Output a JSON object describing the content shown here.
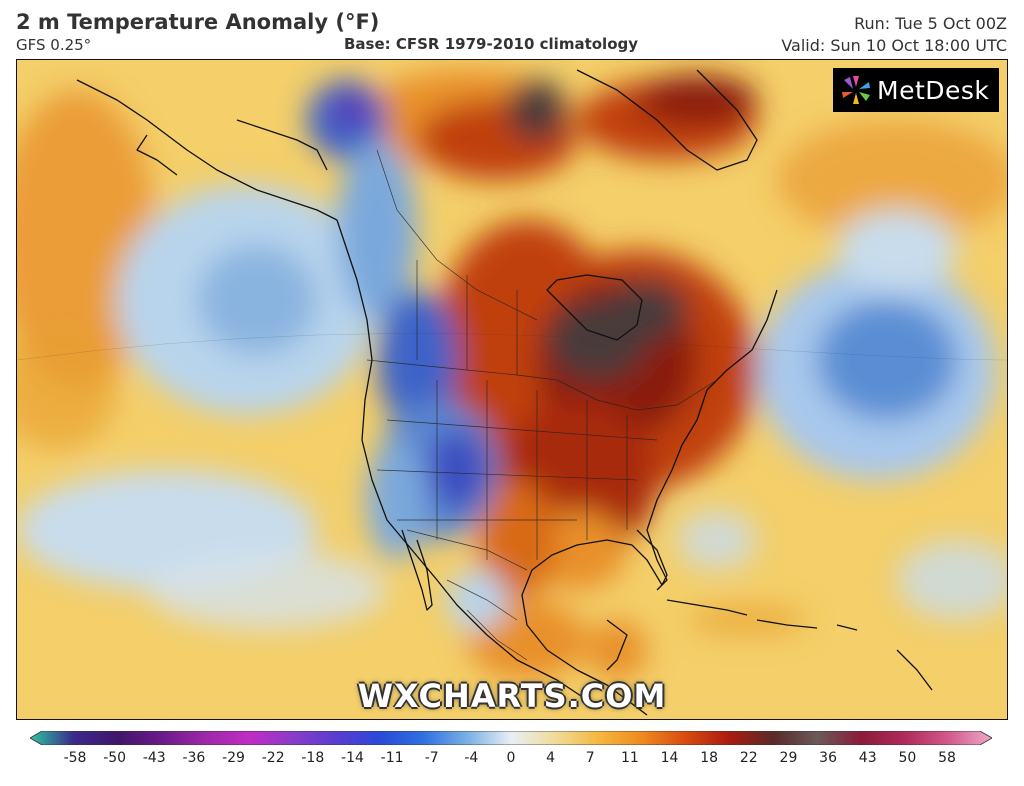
{
  "header": {
    "title": "2 m Temperature Anomaly (°F)",
    "model": "GFS 0.25°",
    "base": "Base: CFSR 1979-2010 climatology",
    "run": "Run: Tue 5 Oct 00Z",
    "valid": "Valid: Sun 10 Oct 18:00 UTC"
  },
  "logo": {
    "text": "MetDesk",
    "icon": "metdesk-logo-icon"
  },
  "watermark": "WXCHARTS.COM",
  "legend": {
    "ticks": [
      "-58",
      "-50",
      "-43",
      "-36",
      "-29",
      "-22",
      "-18",
      "-14",
      "-11",
      "-7",
      "-4",
      "0",
      "4",
      "7",
      "11",
      "14",
      "18",
      "22",
      "29",
      "36",
      "43",
      "50",
      "58"
    ],
    "colors": [
      "#2ec4a0",
      "#3a2a8a",
      "#40166a",
      "#6a1a88",
      "#9c28a8",
      "#c02cc4",
      "#8a3cc8",
      "#5a3cd0",
      "#2a4ad8",
      "#3070e0",
      "#7ab0e4",
      "#e8eef4",
      "#f0dc9a",
      "#f4b840",
      "#ee8a20",
      "#d84a10",
      "#a81c10",
      "#5a2a28",
      "#6a5a5a",
      "#8a1c3a",
      "#b02a5a",
      "#d05a8a",
      "#f0a8c8"
    ]
  },
  "map": {
    "colors": {
      "background": "#f4cf6a",
      "warm": "#e8902a",
      "hot": "#c0400e",
      "very_hot": "#8a1a10",
      "extreme": "#4a3a3a",
      "cool": "#b8d4ec",
      "cold": "#7aa8dc",
      "very_cold": "#3d64c8",
      "frigid": "#5a3ab8"
    }
  }
}
